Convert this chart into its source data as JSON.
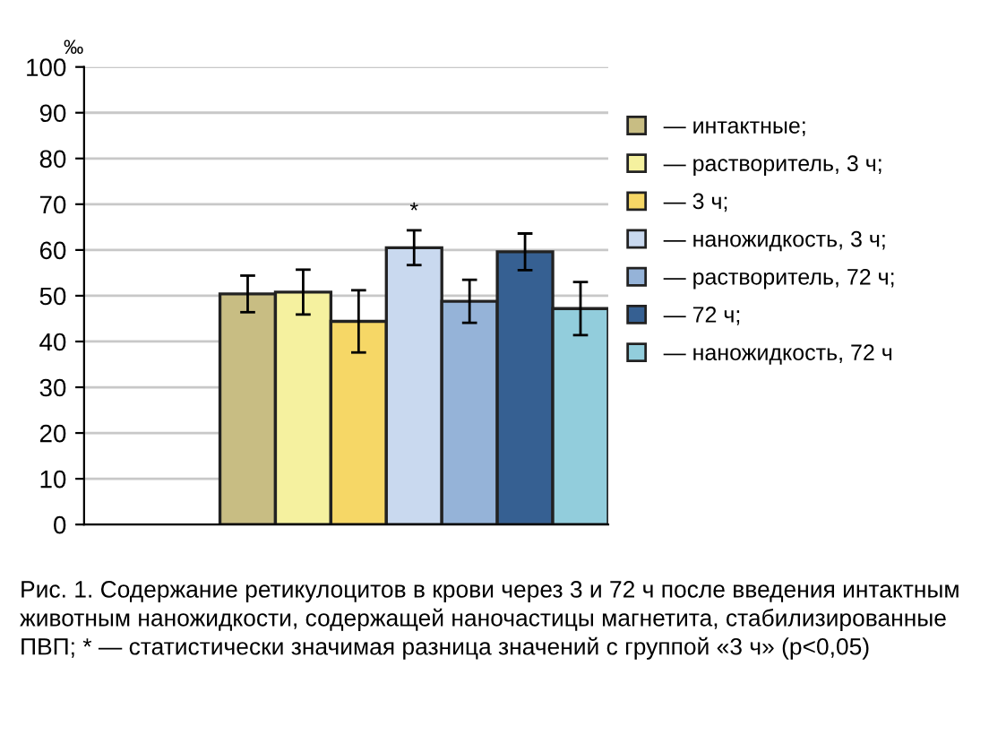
{
  "chart_data": {
    "type": "bar",
    "ylabel": "‰",
    "categories": [
      null
    ],
    "series": [
      {
        "name": "— интактные;",
        "color": "#c8bd83",
        "values": [
          50.4
        ],
        "errors": [
          4
        ]
      },
      {
        "name": "— растворитель, 3 ч;",
        "color": "#f5f19f",
        "values": [
          50.8
        ],
        "errors": [
          4.9
        ]
      },
      {
        "name": "— 3 ч;",
        "color": "#f6d766",
        "values": [
          44.4
        ],
        "errors": [
          6.8
        ]
      },
      {
        "name": "— наножидкость, 3 ч;",
        "color": "#c9d9ef",
        "values": [
          60.5
        ],
        "errors": [
          3.8
        ]
      },
      {
        "name": "— растворитель, 72 ч;",
        "color": "#95b3d8",
        "values": [
          48.8
        ],
        "errors": [
          4.7
        ]
      },
      {
        "name": "— 72 ч;",
        "color": "#366092",
        "values": [
          59.6
        ],
        "errors": [
          4
        ]
      },
      {
        "name": "— наножидкость, 72 ч",
        "color": "#92cddc",
        "values": [
          47.2
        ],
        "errors": [
          5.8
        ]
      }
    ],
    "ylim": [
      0,
      100
    ],
    "yticks": [
      0,
      10,
      20,
      30,
      40,
      50,
      60,
      70,
      80,
      90,
      100
    ],
    "grid": "y",
    "legend": "right",
    "annotations": [
      {
        "text": "*",
        "y": 66
      },
      "Рис. 1. Содержание ретикулоцитов в крови через 3 и 72 ч после введения интактным животным наножидкости, содержащей наночастицы магнетита, стабилизированные ПВП; * — статистически значимая разница значений с группой «3 ч» (p<0,05)"
    ]
  }
}
